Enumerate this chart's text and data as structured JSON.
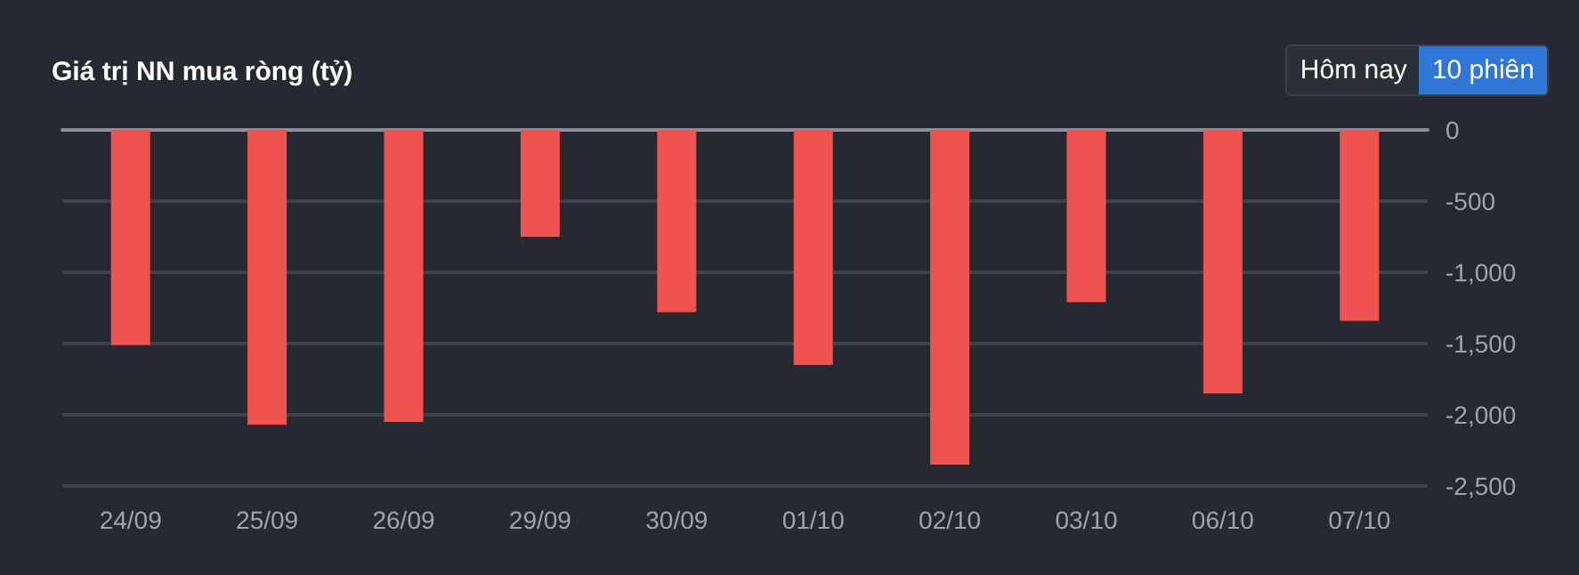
{
  "chart_data": {
    "type": "bar",
    "title": "Giá trị NN mua ròng (tỷ)",
    "annotations": [
      "Hôm nay",
      "10 phiên"
    ],
    "categories": [
      "24/09",
      "25/09",
      "26/09",
      "29/09",
      "30/09",
      "01/10",
      "02/10",
      "03/10",
      "06/10",
      "07/10"
    ],
    "values": [
      -1510,
      -2070,
      -2050,
      -750,
      -1280,
      -1650,
      -2350,
      -1210,
      -1850,
      -1340
    ],
    "color": "#ef5350",
    "ylim": [
      -2500,
      0
    ],
    "yticks": [
      0,
      -500,
      {
        "value": -1000,
        "label": "-1,000"
      },
      {
        "value": -1500,
        "label": "-1,500"
      },
      {
        "value": -2000,
        "label": "-2,000"
      },
      {
        "value": -2500,
        "label": "-2,500"
      }
    ],
    "grid": "y"
  }
}
